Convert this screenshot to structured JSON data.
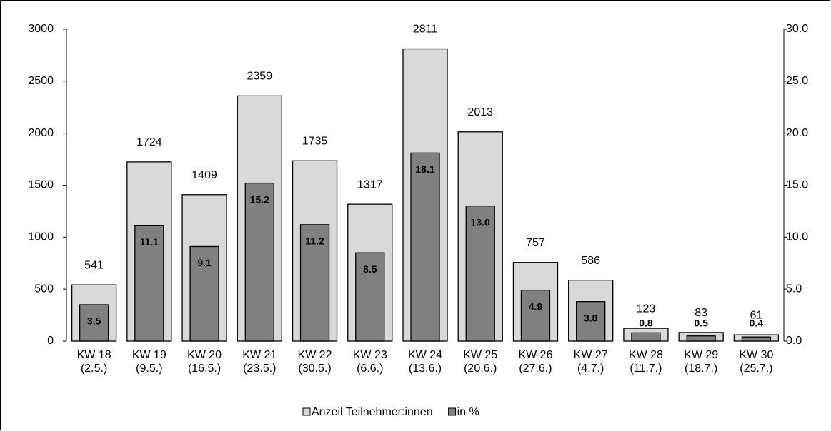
{
  "chart_data": {
    "type": "bar",
    "categories": [
      [
        "KW 18",
        "(2.5.)"
      ],
      [
        "KW 19",
        "(9.5.)"
      ],
      [
        "KW 20",
        "(16.5.)"
      ],
      [
        "KW 21",
        "(23.5.)"
      ],
      [
        "KW 22",
        "(30.5.)"
      ],
      [
        "KW 23",
        "(6.6.)"
      ],
      [
        "KW 24",
        "(13.6.)"
      ],
      [
        "KW 25",
        "(20.6.)"
      ],
      [
        "KW 26",
        "(27.6.)"
      ],
      [
        "KW 27",
        "(4.7.)"
      ],
      [
        "KW 28",
        "(11.7.)"
      ],
      [
        "KW 29",
        "(18.7.)"
      ],
      [
        "KW 30",
        "(25.7.)"
      ]
    ],
    "series": [
      {
        "name": "Anzeil Teilnehmer:innen",
        "color": "#d9d9d9",
        "values": [
          541,
          1724,
          1409,
          2359,
          1735,
          1317,
          2811,
          2013,
          757,
          586,
          123,
          83,
          61
        ]
      },
      {
        "name": "in %",
        "color": "#808080",
        "axis": "y2",
        "values": [
          3.5,
          11.1,
          9.1,
          15.2,
          11.2,
          8.5,
          18.1,
          13.0,
          4.9,
          3.8,
          0.8,
          0.5,
          0.4
        ],
        "value_labels": [
          "3.5",
          "11.1",
          "9.1",
          "15.2",
          "11.2",
          "8.5",
          "18.1",
          "13.0",
          "4.9",
          "3.8",
          "0.8",
          "0.5",
          "0.4"
        ]
      }
    ],
    "ylim": [
      0,
      3000
    ],
    "yticks": [
      0,
      500,
      1000,
      1500,
      2000,
      2500,
      3000
    ],
    "y2lim": [
      0,
      30
    ],
    "y2ticks": [
      {
        "value": 0,
        "label": "0.0"
      },
      {
        "value": 5,
        "label": "5.0"
      },
      {
        "value": 10,
        "label": "10.0"
      },
      {
        "value": 15,
        "label": "15.0"
      },
      {
        "value": 20,
        "label": "20.0"
      },
      {
        "value": 25,
        "label": "25.0"
      },
      {
        "value": 30,
        "label": "30.0"
      }
    ],
    "legend": "bottom"
  }
}
